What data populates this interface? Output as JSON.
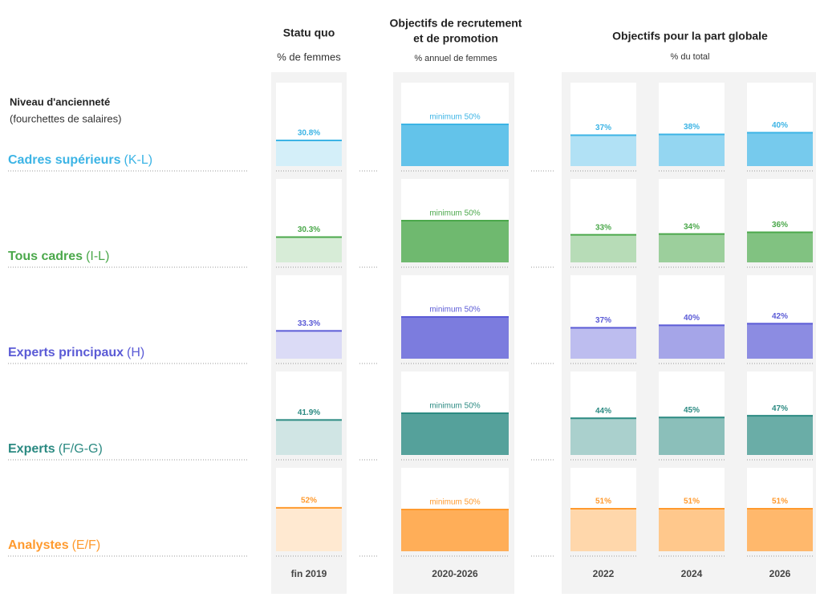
{
  "chart_data": {
    "type": "bar-grid",
    "row_header": {
      "title": "Niveau d'ancienneté",
      "subtitle": "(fourchettes de salaires)"
    },
    "groups": [
      {
        "title": "Statu quo",
        "subtitle": "% de femmes"
      },
      {
        "title": [
          "Objectifs de recrutement",
          "et de promotion"
        ],
        "subtitle": "% annuel de femmes"
      },
      {
        "title": "Objectifs pour la part globale",
        "subtitle": "% du total"
      }
    ],
    "columns": [
      "fin 2019",
      "2020-2026",
      "2022",
      "2024",
      "2026"
    ],
    "ylim": [
      0,
      100
    ],
    "rows": [
      {
        "name": "Cadres supérieurs",
        "code": "(K-L)",
        "color": "#3cb4e5",
        "values": [
          30.8,
          50,
          37,
          38,
          40
        ],
        "value_labels": [
          "30.8%",
          "minimum 50%",
          "37%",
          "38%",
          "40%"
        ]
      },
      {
        "name": "Tous cadres",
        "code": "(I-L)",
        "color": "#4ba84b",
        "values": [
          30.3,
          50,
          33,
          34,
          36
        ],
        "value_labels": [
          "30.3%",
          "minimum 50%",
          "33%",
          "34%",
          "36%"
        ]
      },
      {
        "name": "Experts principaux",
        "code": "(H)",
        "color": "#5b5bd6",
        "values": [
          33.3,
          50,
          37,
          40,
          42
        ],
        "value_labels": [
          "33.3%",
          "minimum 50%",
          "37%",
          "40%",
          "42%"
        ]
      },
      {
        "name": "Experts",
        "code": "(F/G-G)",
        "color": "#2b8a82",
        "values": [
          41.9,
          50,
          44,
          45,
          47
        ],
        "value_labels": [
          "41.9%",
          "minimum 50%",
          "44%",
          "45%",
          "47%"
        ]
      },
      {
        "name": "Analystes",
        "code": "(E/F)",
        "color": "#ff9a2e",
        "values": [
          52,
          50,
          51,
          51,
          51
        ],
        "value_labels": [
          "52%",
          "minimum 50%",
          "51%",
          "51%",
          "51%"
        ]
      }
    ]
  }
}
